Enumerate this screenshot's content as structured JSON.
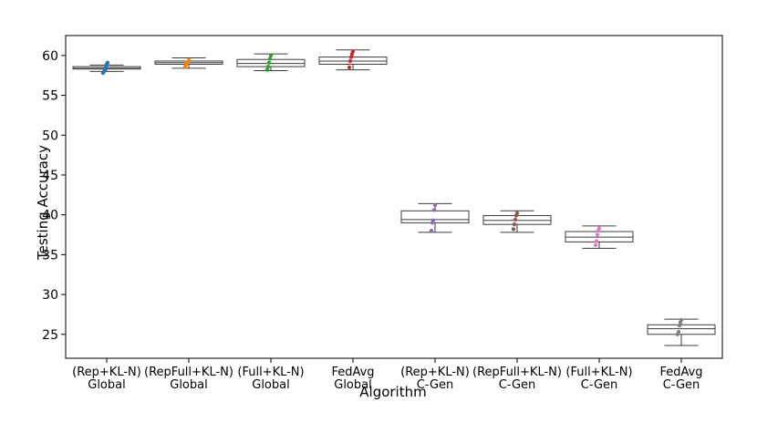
{
  "chart_data": {
    "type": "box",
    "title": "",
    "xlabel": "Algorithm",
    "ylabel": "Testing Accuracy",
    "ylim": [
      22,
      62.5
    ],
    "yticks": [
      25,
      30,
      35,
      40,
      45,
      50,
      55,
      60
    ],
    "grid": false,
    "categories": [
      {
        "line1": "(Rep+KL-N)",
        "line2": "Global"
      },
      {
        "line1": "(RepFull+KL-N)",
        "line2": "Global"
      },
      {
        "line1": "(Full+KL-N)",
        "line2": "Global"
      },
      {
        "line1": "FedAvg",
        "line2": "Global"
      },
      {
        "line1": "(Rep+KL-N)",
        "line2": "C-Gen"
      },
      {
        "line1": "(RepFull+KL-N)",
        "line2": "C-Gen"
      },
      {
        "line1": "(Full+KL-N)",
        "line2": "C-Gen"
      },
      {
        "line1": "FedAvg",
        "line2": "C-Gen"
      }
    ],
    "boxes": [
      {
        "whislo": 58.0,
        "q1": 58.3,
        "median": 58.4,
        "q3": 58.6,
        "whishi": 58.8,
        "color": "#1f77b4",
        "points": [
          57.8,
          58.0,
          58.3,
          58.5,
          58.9,
          59.1
        ]
      },
      {
        "whislo": 58.4,
        "q1": 58.9,
        "median": 59.1,
        "q3": 59.3,
        "whishi": 59.7,
        "color": "#ff7f0e",
        "points": [
          58.6,
          58.9,
          59.0,
          59.2,
          59.4
        ]
      },
      {
        "whislo": 58.1,
        "q1": 58.6,
        "median": 59.0,
        "q3": 59.5,
        "whishi": 60.2,
        "color": "#2ca02c",
        "points": [
          58.2,
          58.6,
          59.1,
          59.6,
          60.0
        ]
      },
      {
        "whislo": 58.2,
        "q1": 58.9,
        "median": 59.3,
        "q3": 59.8,
        "whishi": 60.7,
        "color": "#d62728",
        "points": [
          58.5,
          59.3,
          59.8,
          60.2,
          60.5
        ]
      },
      {
        "whislo": 37.8,
        "q1": 39.0,
        "median": 39.4,
        "q3": 40.5,
        "whishi": 41.4,
        "color": "#9467bd",
        "points": [
          38.0,
          39.0,
          39.3,
          40.6,
          41.2
        ]
      },
      {
        "whislo": 37.8,
        "q1": 38.8,
        "median": 39.3,
        "q3": 39.9,
        "whishi": 40.5,
        "color": "#8c564b",
        "points": [
          38.2,
          38.8,
          39.4,
          39.9,
          40.2
        ]
      },
      {
        "whislo": 35.8,
        "q1": 36.6,
        "median": 37.2,
        "q3": 37.9,
        "whishi": 38.6,
        "color": "#e377c2",
        "points": [
          36.2,
          36.7,
          37.5,
          38.0,
          38.3
        ]
      },
      {
        "whislo": 23.6,
        "q1": 25.0,
        "median": 25.7,
        "q3": 26.2,
        "whishi": 26.9,
        "color": "#7f7f7f",
        "points": [
          25.0,
          25.3,
          26.1,
          26.5,
          26.8
        ]
      }
    ]
  }
}
